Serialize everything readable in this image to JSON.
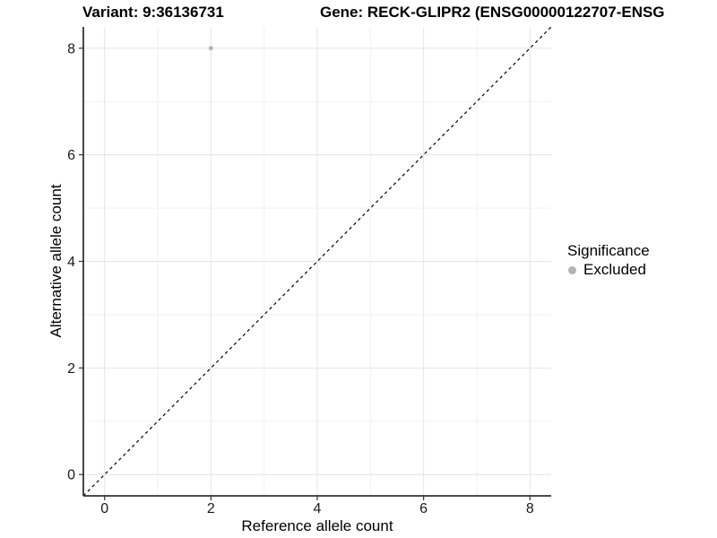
{
  "chart_data": {
    "type": "scatter",
    "titles": {
      "left": "Variant: 9:36136731",
      "right": "Gene: RECK-GLIPR2 (ENSG00000122707-ENSG"
    },
    "xlabel": "Reference allele count",
    "ylabel": "Alternative allele count",
    "xlim": [
      -0.4,
      8.4
    ],
    "ylim": [
      -0.4,
      8.4
    ],
    "x_ticks": [
      0,
      2,
      4,
      6,
      8
    ],
    "y_ticks": [
      0,
      2,
      4,
      6,
      8
    ],
    "x_minor_ticks": [
      1,
      3,
      5,
      7
    ],
    "y_minor_ticks": [
      1,
      3,
      5,
      7
    ],
    "grid": "on",
    "series": [
      {
        "name": "Excluded",
        "marker": "circle",
        "color": "#b3b3b3",
        "points": [
          {
            "x": 2,
            "y": 8
          }
        ]
      }
    ],
    "identity_line": {
      "slope": 1,
      "intercept": 0,
      "style": "dashed",
      "color": "#000000"
    },
    "legend": {
      "position": "right",
      "title": "Significance",
      "items": [
        {
          "label": "Excluded",
          "color": "#b3b3b3"
        }
      ]
    },
    "colors": {
      "background": "#ffffff",
      "grid_major": "#e4e4e4",
      "grid_minor": "#f1f1f1",
      "axis_line": "#333333",
      "tick_mark": "#333333",
      "tick_text": "#1a1a1a"
    }
  }
}
